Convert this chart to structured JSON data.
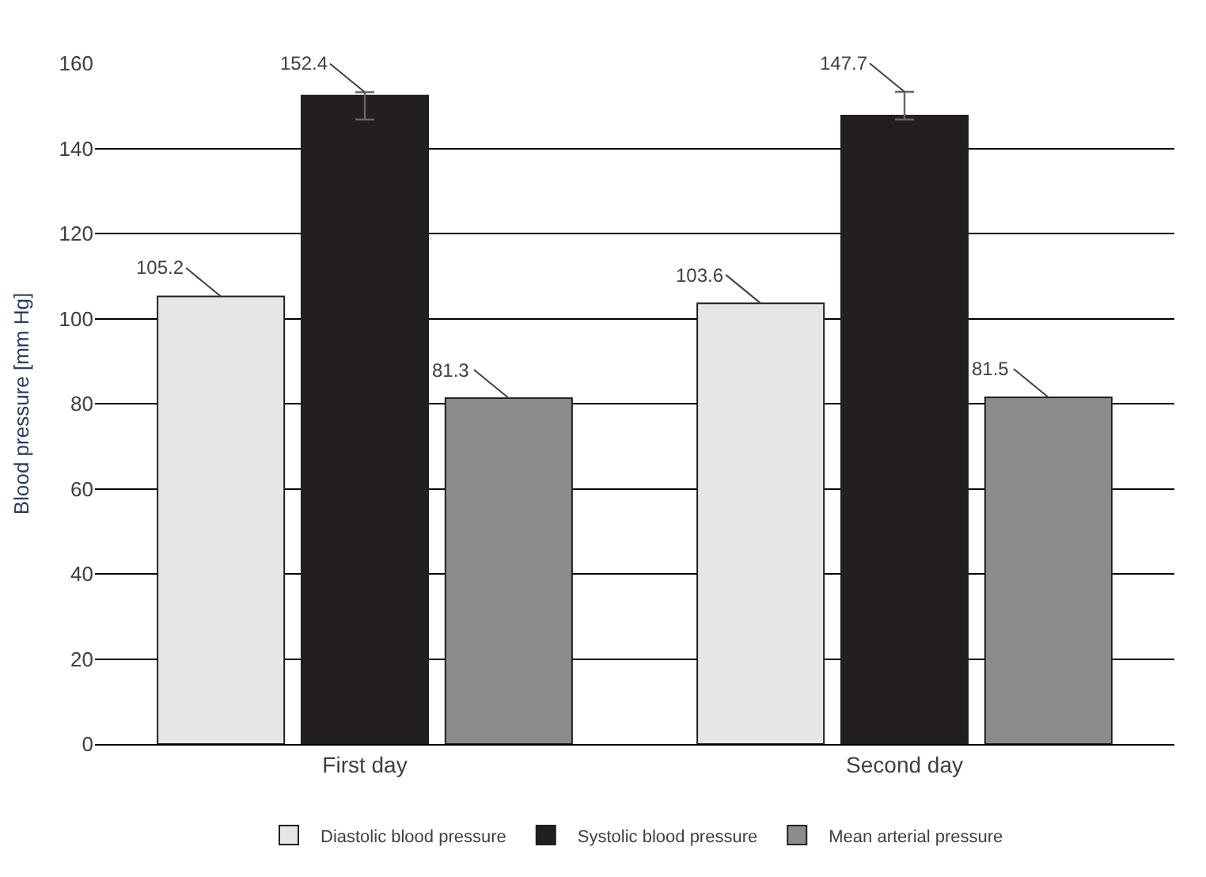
{
  "chart_data": {
    "type": "bar",
    "ylabel": "Blood pressure [mm Hg]",
    "categories": [
      "First day",
      "Second day"
    ],
    "series": [
      {
        "name": "Diastolic blood pressure",
        "color": "#e6e6e6",
        "values": [
          105.2,
          103.6
        ]
      },
      {
        "name": "Systolic blood pressure",
        "color": "#231f20",
        "values": [
          152.4,
          147.7
        ],
        "errors": [
          [
            146.8,
            153.2
          ],
          [
            146.8,
            153.3
          ]
        ]
      },
      {
        "name": "Mean arterial pressure",
        "color": "#8c8c8c",
        "values": [
          81.3,
          81.5
        ]
      }
    ],
    "ylim": [
      0,
      160
    ],
    "yticks": [
      0,
      20,
      40,
      60,
      80,
      100,
      120,
      140,
      160
    ],
    "grid": "y",
    "legend": "bottom",
    "data_labels": true
  }
}
